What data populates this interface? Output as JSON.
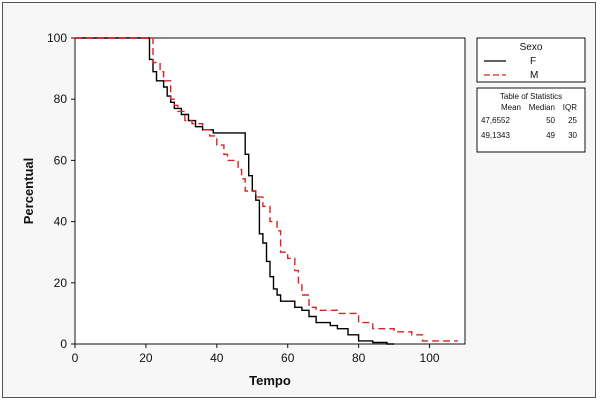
{
  "chart_data": {
    "type": "line",
    "xlabel": "Tempo",
    "ylabel": "Percentual",
    "xlim": [
      0,
      110
    ],
    "ylim": [
      0,
      100
    ],
    "xticks": [
      0,
      20,
      40,
      60,
      80,
      100
    ],
    "yticks": [
      0,
      20,
      40,
      60,
      80,
      100
    ],
    "grid": false,
    "legend_position": "right",
    "legend": {
      "title": "Sexo",
      "entries": [
        {
          "name": "F",
          "color": "#000000",
          "style": "solid"
        },
        {
          "name": "M",
          "color": "#e02020",
          "style": "dashed"
        }
      ]
    },
    "stats_table": {
      "title": "Table of Statistics",
      "headers": [
        "Mean",
        "Median",
        "IQR"
      ],
      "rows": [
        [
          "47,6552",
          "50",
          "25"
        ],
        [
          "49,1343",
          "49",
          "30"
        ]
      ]
    },
    "series": [
      {
        "name": "F",
        "color": "#000000",
        "dash": "",
        "points": [
          [
            0,
            100
          ],
          [
            21,
            100
          ],
          [
            21,
            93
          ],
          [
            22,
            93
          ],
          [
            22,
            89
          ],
          [
            23,
            89
          ],
          [
            23,
            86
          ],
          [
            25,
            86
          ],
          [
            25,
            84
          ],
          [
            26,
            84
          ],
          [
            26,
            81
          ],
          [
            27,
            81
          ],
          [
            27,
            79
          ],
          [
            28,
            79
          ],
          [
            28,
            77
          ],
          [
            30,
            77
          ],
          [
            30,
            75
          ],
          [
            32,
            75
          ],
          [
            32,
            73
          ],
          [
            34,
            73
          ],
          [
            34,
            71
          ],
          [
            36,
            71
          ],
          [
            36,
            70
          ],
          [
            39,
            70
          ],
          [
            39,
            69
          ],
          [
            48,
            69
          ],
          [
            48,
            62
          ],
          [
            49,
            62
          ],
          [
            49,
            55
          ],
          [
            50,
            55
          ],
          [
            50,
            50
          ],
          [
            51,
            50
          ],
          [
            51,
            47
          ],
          [
            52,
            47
          ],
          [
            52,
            36
          ],
          [
            53,
            36
          ],
          [
            53,
            33
          ],
          [
            54,
            33
          ],
          [
            54,
            27
          ],
          [
            55,
            27
          ],
          [
            55,
            22
          ],
          [
            56,
            22
          ],
          [
            56,
            18
          ],
          [
            57,
            18
          ],
          [
            57,
            16
          ],
          [
            58,
            16
          ],
          [
            58,
            14
          ],
          [
            62,
            14
          ],
          [
            62,
            12
          ],
          [
            64,
            12
          ],
          [
            64,
            11
          ],
          [
            66,
            11
          ],
          [
            66,
            9
          ],
          [
            68,
            9
          ],
          [
            68,
            7
          ],
          [
            72,
            7
          ],
          [
            72,
            6
          ],
          [
            74,
            6
          ],
          [
            74,
            5
          ],
          [
            77,
            5
          ],
          [
            77,
            3
          ],
          [
            80,
            3
          ],
          [
            80,
            1
          ],
          [
            84,
            1
          ],
          [
            84,
            0.5
          ],
          [
            88,
            0.5
          ],
          [
            88,
            0
          ],
          [
            90,
            0
          ]
        ]
      },
      {
        "name": "M",
        "color": "#e02020",
        "dash": "7,4",
        "points": [
          [
            0,
            100
          ],
          [
            22,
            100
          ],
          [
            22,
            92
          ],
          [
            24,
            92
          ],
          [
            24,
            89
          ],
          [
            25,
            89
          ],
          [
            25,
            86
          ],
          [
            27,
            86
          ],
          [
            27,
            80
          ],
          [
            28,
            80
          ],
          [
            28,
            78
          ],
          [
            29,
            78
          ],
          [
            29,
            76
          ],
          [
            31,
            76
          ],
          [
            31,
            73
          ],
          [
            33,
            73
          ],
          [
            33,
            72
          ],
          [
            36,
            72
          ],
          [
            36,
            70
          ],
          [
            38,
            70
          ],
          [
            38,
            68
          ],
          [
            40,
            68
          ],
          [
            40,
            65
          ],
          [
            42,
            65
          ],
          [
            42,
            62
          ],
          [
            43,
            62
          ],
          [
            43,
            60
          ],
          [
            46,
            60
          ],
          [
            46,
            57
          ],
          [
            47,
            57
          ],
          [
            47,
            54
          ],
          [
            48,
            54
          ],
          [
            48,
            50
          ],
          [
            51,
            50
          ],
          [
            51,
            48
          ],
          [
            53,
            48
          ],
          [
            53,
            45
          ],
          [
            55,
            45
          ],
          [
            55,
            40
          ],
          [
            57,
            40
          ],
          [
            57,
            37
          ],
          [
            58,
            37
          ],
          [
            58,
            30
          ],
          [
            60,
            30
          ],
          [
            60,
            28
          ],
          [
            62,
            28
          ],
          [
            62,
            24
          ],
          [
            63,
            24
          ],
          [
            63,
            20
          ],
          [
            64,
            20
          ],
          [
            64,
            16
          ],
          [
            66,
            16
          ],
          [
            66,
            12
          ],
          [
            68,
            12
          ],
          [
            68,
            11
          ],
          [
            74,
            11
          ],
          [
            74,
            10
          ],
          [
            80,
            10
          ],
          [
            80,
            7
          ],
          [
            84,
            7
          ],
          [
            84,
            5
          ],
          [
            90,
            5
          ],
          [
            90,
            4
          ],
          [
            95,
            4
          ],
          [
            95,
            3
          ],
          [
            98,
            3
          ],
          [
            98,
            1
          ],
          [
            108,
            1
          ]
        ]
      }
    ]
  }
}
